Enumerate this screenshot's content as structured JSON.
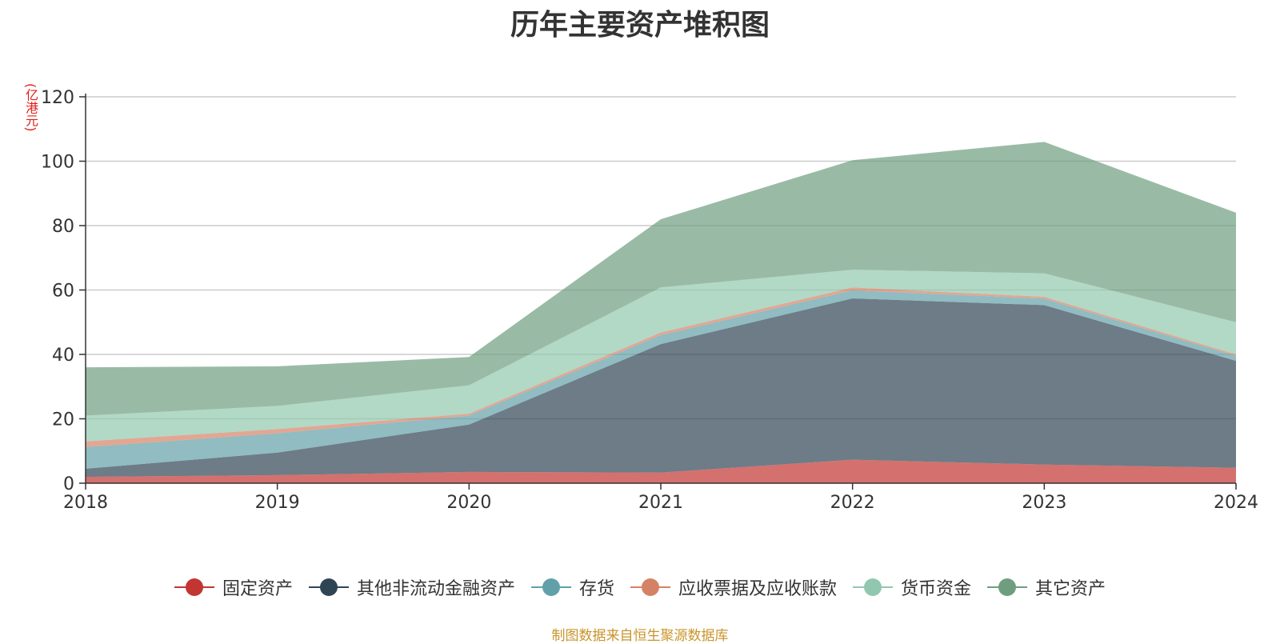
{
  "chart_data": {
    "type": "area",
    "stacked": true,
    "title": "历年主要资产堆积图",
    "ylabel": "(亿港元)",
    "x": [
      "2018",
      "2019",
      "2020",
      "2021",
      "2022",
      "2023",
      "2024"
    ],
    "ylim": [
      0,
      120
    ],
    "yticks": [
      "0",
      "20",
      "40",
      "60",
      "80",
      "100",
      "120"
    ],
    "grid": true,
    "legend_position": "bottom",
    "series": [
      {
        "name": "固定资产",
        "color": "#c23531",
        "values": [
          2.0,
          2.5,
          3.5,
          3.3,
          7.3,
          5.8,
          4.8
        ]
      },
      {
        "name": "其他非流动金融资产",
        "color": "#2f4554",
        "values": [
          2.5,
          7.0,
          14.7,
          39.9,
          50.1,
          49.5,
          33.2
        ]
      },
      {
        "name": "存货",
        "color": "#61a0a8",
        "values": [
          6.7,
          6.0,
          2.8,
          2.8,
          2.5,
          2.0,
          1.5
        ]
      },
      {
        "name": "应收票据及应收账款",
        "color": "#d48265",
        "values": [
          1.8,
          1.3,
          0.6,
          0.8,
          0.9,
          0.6,
          0.5
        ]
      },
      {
        "name": "货币资金",
        "color": "#91c7ae",
        "values": [
          8.0,
          7.2,
          8.8,
          14.0,
          5.5,
          7.3,
          10.0
        ]
      },
      {
        "name": "其它资产",
        "color": "#6e9e7f",
        "values": [
          15.0,
          12.3,
          8.8,
          21.2,
          34.0,
          40.8,
          34.0
        ]
      }
    ],
    "source_note": "制图数据来自恒生聚源数据库"
  }
}
